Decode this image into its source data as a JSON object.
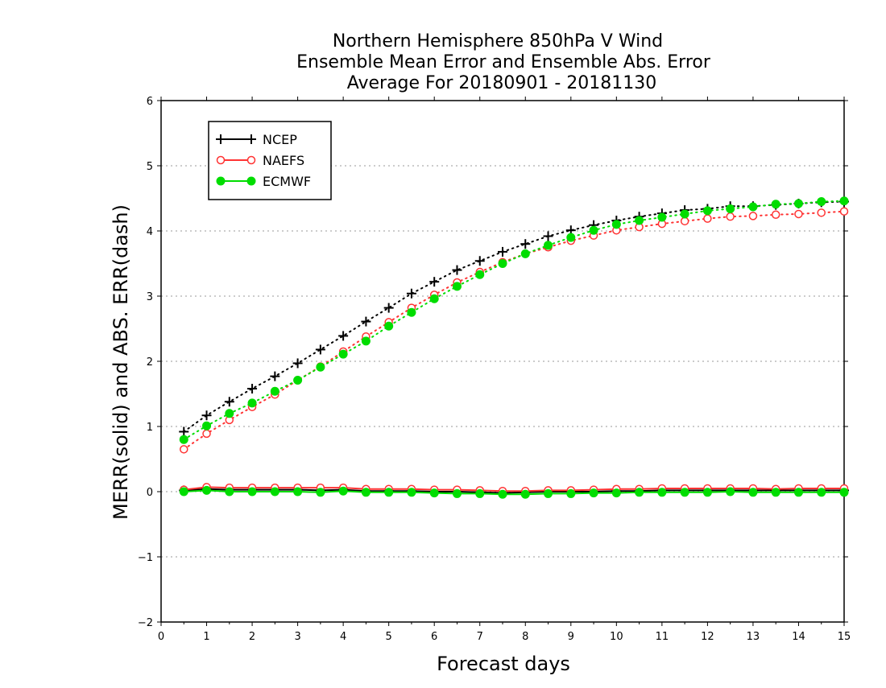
{
  "chart_data": {
    "type": "line",
    "title": [
      "Northern Hemisphere 850hPa V Wind",
      "Ensemble Mean Error and Ensemble Abs. Error",
      "Average For 20180901 - 20181130"
    ],
    "xlabel": "Forecast days",
    "ylabel": "MERR(solid) and ABS. ERR(dash)",
    "xlim": [
      0,
      15
    ],
    "ylim": [
      -2,
      6
    ],
    "x_ticks": [
      0,
      1,
      2,
      3,
      4,
      5,
      6,
      7,
      8,
      9,
      10,
      11,
      12,
      13,
      14,
      15
    ],
    "y_ticks": [
      -2,
      -1,
      0,
      1,
      2,
      3,
      4,
      5,
      6
    ],
    "grid": "horizontal dotted",
    "legend_position": "top-left",
    "x": [
      0.5,
      1,
      1.5,
      2,
      2.5,
      3,
      3.5,
      4,
      4.5,
      5,
      5.5,
      6,
      6.5,
      7,
      7.5,
      8,
      8.5,
      9,
      9.5,
      10,
      10.5,
      11,
      11.5,
      12,
      12.5,
      13,
      13.5,
      14,
      14.5,
      15
    ],
    "series": [
      {
        "name": "NCEP",
        "color": "#000000",
        "marker": "plus",
        "abs_err": [
          0.92,
          1.17,
          1.38,
          1.58,
          1.77,
          1.97,
          2.18,
          2.39,
          2.61,
          2.82,
          3.04,
          3.22,
          3.4,
          3.54,
          3.68,
          3.8,
          3.92,
          4.01,
          4.09,
          4.16,
          4.22,
          4.27,
          4.32,
          4.34,
          4.38,
          4.38,
          4.4,
          4.42,
          4.44,
          4.45
        ],
        "mean_err": [
          0.02,
          0.04,
          0.03,
          0.03,
          0.03,
          0.03,
          0.02,
          0.03,
          0.01,
          0.01,
          0.01,
          0.0,
          0.0,
          -0.01,
          -0.02,
          -0.01,
          0.0,
          0.0,
          0.0,
          0.01,
          0.01,
          0.02,
          0.02,
          0.02,
          0.02,
          0.02,
          0.02,
          0.02,
          0.02,
          0.02
        ]
      },
      {
        "name": "NAEFS",
        "color": "#ff3333",
        "marker": "open-circle",
        "abs_err": [
          0.65,
          0.89,
          1.1,
          1.3,
          1.49,
          1.71,
          1.92,
          2.15,
          2.38,
          2.6,
          2.82,
          3.02,
          3.21,
          3.37,
          3.52,
          3.65,
          3.75,
          3.85,
          3.93,
          4.01,
          4.06,
          4.11,
          4.15,
          4.19,
          4.22,
          4.23,
          4.25,
          4.26,
          4.28,
          4.3
        ],
        "mean_err": [
          0.03,
          0.07,
          0.06,
          0.06,
          0.06,
          0.06,
          0.06,
          0.06,
          0.04,
          0.04,
          0.04,
          0.03,
          0.03,
          0.02,
          0.01,
          0.01,
          0.02,
          0.02,
          0.03,
          0.04,
          0.04,
          0.05,
          0.05,
          0.05,
          0.05,
          0.05,
          0.04,
          0.05,
          0.05,
          0.05
        ]
      },
      {
        "name": "ECMWF",
        "color": "#00dd00",
        "marker": "filled-circle",
        "abs_err": [
          0.8,
          1.01,
          1.2,
          1.36,
          1.54,
          1.71,
          1.91,
          2.11,
          2.31,
          2.54,
          2.75,
          2.96,
          3.15,
          3.33,
          3.5,
          3.65,
          3.78,
          3.9,
          4.01,
          4.1,
          4.16,
          4.21,
          4.26,
          4.31,
          4.34,
          4.37,
          4.41,
          4.42,
          4.45,
          4.46
        ],
        "mean_err": [
          0.0,
          0.02,
          0.0,
          0.0,
          0.0,
          0.0,
          -0.01,
          0.01,
          -0.01,
          -0.01,
          -0.01,
          -0.02,
          -0.03,
          -0.03,
          -0.04,
          -0.04,
          -0.03,
          -0.03,
          -0.02,
          -0.02,
          -0.01,
          -0.01,
          -0.01,
          -0.01,
          0.0,
          -0.01,
          -0.01,
          -0.01,
          -0.01,
          -0.01
        ]
      }
    ]
  }
}
